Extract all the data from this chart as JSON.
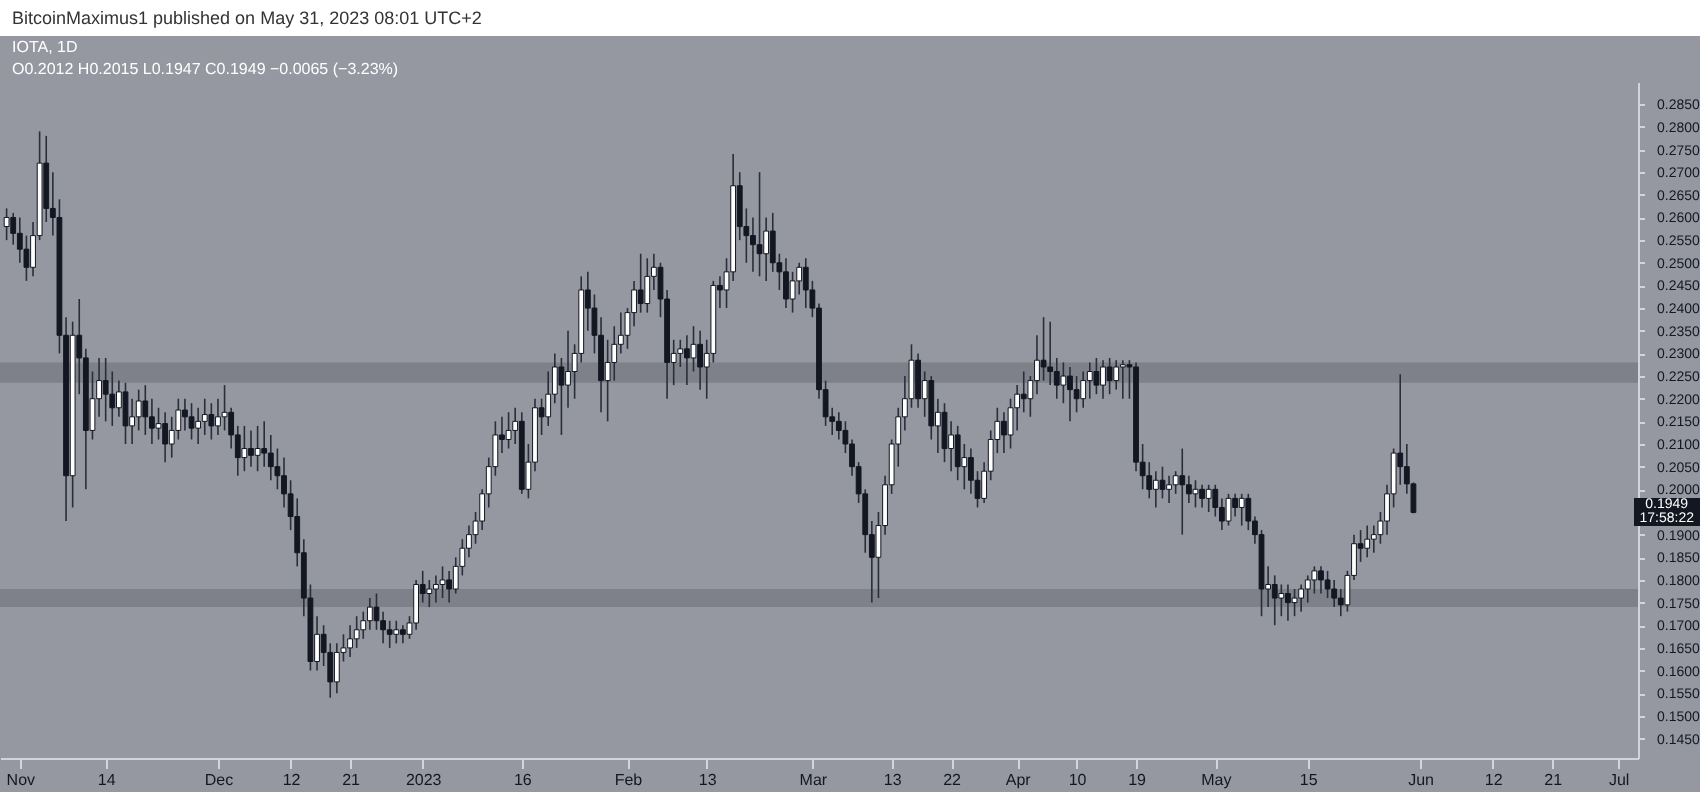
{
  "chart_data": {
    "type": "candlestick",
    "title": "IOTA, 1D",
    "subtitle": "O0.2012 H0.2015 L0.1947 C0.1949 −0.0065 (−3.23%)",
    "annotations": [
      "BitcoinMaximus1 published on May 31, 2023 08:01 UTC+2",
      "0.1949",
      "17:58:22"
    ],
    "x": [
      "2022-10-30",
      "2022-10-31",
      "2022-11-01",
      "2022-11-02",
      "2022-11-03",
      "2022-11-04",
      "2022-11-05",
      "2022-11-06",
      "2022-11-07",
      "2022-11-08",
      "2022-11-09",
      "2022-11-10",
      "2022-11-11",
      "2022-11-12",
      "2022-11-13",
      "2022-11-14",
      "2022-11-15",
      "2022-11-16",
      "2022-11-17",
      "2022-11-18",
      "2022-11-19",
      "2022-11-20",
      "2022-11-21",
      "2022-11-22",
      "2022-11-23",
      "2022-11-24",
      "2022-11-25",
      "2022-11-26",
      "2022-11-27",
      "2022-11-28",
      "2022-11-29",
      "2022-11-30",
      "2022-12-01",
      "2022-12-02",
      "2022-12-03",
      "2022-12-04",
      "2022-12-05",
      "2022-12-06",
      "2022-12-07",
      "2022-12-08",
      "2022-12-09",
      "2022-12-10",
      "2022-12-11",
      "2022-12-12",
      "2022-12-13",
      "2022-12-14",
      "2022-12-15",
      "2022-12-16",
      "2022-12-17",
      "2022-12-18",
      "2022-12-19",
      "2022-12-20",
      "2022-12-21",
      "2022-12-22",
      "2022-12-23",
      "2022-12-24",
      "2022-12-25",
      "2022-12-26",
      "2022-12-27",
      "2022-12-28",
      "2022-12-29",
      "2022-12-30",
      "2022-12-31",
      "2023-01-01",
      "2023-01-02",
      "2023-01-03",
      "2023-01-04",
      "2023-01-05",
      "2023-01-06",
      "2023-01-07",
      "2023-01-08",
      "2023-01-09",
      "2023-01-10",
      "2023-01-11",
      "2023-01-12",
      "2023-01-13",
      "2023-01-14",
      "2023-01-15",
      "2023-01-16",
      "2023-01-17",
      "2023-01-18",
      "2023-01-19",
      "2023-01-20",
      "2023-01-21",
      "2023-01-22",
      "2023-01-23",
      "2023-01-24",
      "2023-01-25",
      "2023-01-26",
      "2023-01-27",
      "2023-01-28",
      "2023-01-29",
      "2023-01-30",
      "2023-01-31",
      "2023-02-01",
      "2023-02-02",
      "2023-02-03",
      "2023-02-04",
      "2023-02-05",
      "2023-02-06",
      "2023-02-07",
      "2023-02-08",
      "2023-02-09",
      "2023-02-10",
      "2023-02-11",
      "2023-02-12",
      "2023-02-13",
      "2023-02-14",
      "2023-02-15",
      "2023-02-16",
      "2023-02-17",
      "2023-02-18",
      "2023-02-19",
      "2023-02-20",
      "2023-02-21",
      "2023-02-22",
      "2023-02-23",
      "2023-02-24",
      "2023-02-25",
      "2023-02-26",
      "2023-02-27",
      "2023-02-28",
      "2023-03-01",
      "2023-03-02",
      "2023-03-03",
      "2023-03-04",
      "2023-03-05",
      "2023-03-06",
      "2023-03-07",
      "2023-03-08",
      "2023-03-09",
      "2023-03-10",
      "2023-03-11",
      "2023-03-12",
      "2023-03-13",
      "2023-03-14",
      "2023-03-15",
      "2023-03-16",
      "2023-03-17",
      "2023-03-18",
      "2023-03-19",
      "2023-03-20",
      "2023-03-21",
      "2023-03-22",
      "2023-03-23",
      "2023-03-24",
      "2023-03-25",
      "2023-03-26",
      "2023-03-27",
      "2023-03-28",
      "2023-03-29",
      "2023-03-30",
      "2023-03-31",
      "2023-04-01",
      "2023-04-02",
      "2023-04-03",
      "2023-04-04",
      "2023-04-05",
      "2023-04-06",
      "2023-04-07",
      "2023-04-08",
      "2023-04-09",
      "2023-04-10",
      "2023-04-11",
      "2023-04-12",
      "2023-04-13",
      "2023-04-14",
      "2023-04-15",
      "2023-04-16",
      "2023-04-17",
      "2023-04-18",
      "2023-04-19",
      "2023-04-20",
      "2023-04-21",
      "2023-04-22",
      "2023-04-23",
      "2023-04-24",
      "2023-04-25",
      "2023-04-26",
      "2023-04-27",
      "2023-04-28",
      "2023-04-29",
      "2023-04-30",
      "2023-05-01",
      "2023-05-02",
      "2023-05-03",
      "2023-05-04",
      "2023-05-05",
      "2023-05-06",
      "2023-05-07",
      "2023-05-08",
      "2023-05-09",
      "2023-05-10",
      "2023-05-11",
      "2023-05-12",
      "2023-05-13",
      "2023-05-14",
      "2023-05-15",
      "2023-05-16",
      "2023-05-17",
      "2023-05-18",
      "2023-05-19",
      "2023-05-20",
      "2023-05-21",
      "2023-05-22",
      "2023-05-23",
      "2023-05-24",
      "2023-05-25",
      "2023-05-26",
      "2023-05-27",
      "2023-05-28",
      "2023-05-29",
      "2023-05-30",
      "2023-05-31"
    ],
    "ohlc": [
      [
        0.258,
        0.262,
        0.255,
        0.26
      ],
      [
        0.26,
        0.261,
        0.254,
        0.2565
      ],
      [
        0.2565,
        0.26,
        0.25,
        0.253
      ],
      [
        0.253,
        0.256,
        0.246,
        0.249
      ],
      [
        0.249,
        0.259,
        0.247,
        0.256
      ],
      [
        0.256,
        0.279,
        0.255,
        0.272
      ],
      [
        0.272,
        0.278,
        0.259,
        0.262
      ],
      [
        0.262,
        0.27,
        0.256,
        0.26
      ],
      [
        0.26,
        0.264,
        0.23,
        0.234
      ],
      [
        0.234,
        0.238,
        0.193,
        0.203
      ],
      [
        0.203,
        0.237,
        0.196,
        0.234
      ],
      [
        0.234,
        0.242,
        0.221,
        0.229
      ],
      [
        0.229,
        0.231,
        0.2,
        0.213
      ],
      [
        0.213,
        0.226,
        0.211,
        0.22
      ],
      [
        0.22,
        0.229,
        0.216,
        0.224
      ],
      [
        0.224,
        0.229,
        0.215,
        0.221
      ],
      [
        0.221,
        0.226,
        0.214,
        0.218
      ],
      [
        0.218,
        0.224,
        0.216,
        0.2215
      ],
      [
        0.2215,
        0.2235,
        0.21,
        0.214
      ],
      [
        0.214,
        0.22,
        0.21,
        0.216
      ],
      [
        0.216,
        0.222,
        0.213,
        0.2195
      ],
      [
        0.2195,
        0.223,
        0.212,
        0.216
      ],
      [
        0.216,
        0.22,
        0.21,
        0.2135
      ],
      [
        0.2135,
        0.218,
        0.211,
        0.2145
      ],
      [
        0.2145,
        0.217,
        0.206,
        0.21
      ],
      [
        0.21,
        0.216,
        0.207,
        0.213
      ],
      [
        0.213,
        0.22,
        0.211,
        0.2175
      ],
      [
        0.2175,
        0.22,
        0.213,
        0.216
      ],
      [
        0.216,
        0.219,
        0.211,
        0.2135
      ],
      [
        0.2135,
        0.218,
        0.21,
        0.215
      ],
      [
        0.215,
        0.22,
        0.212,
        0.2165
      ],
      [
        0.2165,
        0.219,
        0.211,
        0.214
      ],
      [
        0.214,
        0.22,
        0.212,
        0.216
      ],
      [
        0.216,
        0.223,
        0.213,
        0.217
      ],
      [
        0.217,
        0.218,
        0.209,
        0.212
      ],
      [
        0.212,
        0.214,
        0.203,
        0.207
      ],
      [
        0.207,
        0.214,
        0.204,
        0.209
      ],
      [
        0.209,
        0.213,
        0.205,
        0.2075
      ],
      [
        0.2075,
        0.214,
        0.204,
        0.209
      ],
      [
        0.209,
        0.215,
        0.205,
        0.208
      ],
      [
        0.208,
        0.212,
        0.202,
        0.205
      ],
      [
        0.205,
        0.209,
        0.2,
        0.203
      ],
      [
        0.203,
        0.207,
        0.196,
        0.199
      ],
      [
        0.199,
        0.202,
        0.191,
        0.194
      ],
      [
        0.194,
        0.198,
        0.183,
        0.186
      ],
      [
        0.186,
        0.189,
        0.172,
        0.176
      ],
      [
        0.176,
        0.179,
        0.16,
        0.162
      ],
      [
        0.162,
        0.172,
        0.16,
        0.168
      ],
      [
        0.168,
        0.17,
        0.161,
        0.164
      ],
      [
        0.164,
        0.166,
        0.154,
        0.1575
      ],
      [
        0.1575,
        0.166,
        0.155,
        0.164
      ],
      [
        0.164,
        0.168,
        0.162,
        0.165
      ],
      [
        0.165,
        0.17,
        0.163,
        0.167
      ],
      [
        0.167,
        0.172,
        0.165,
        0.169
      ],
      [
        0.169,
        0.173,
        0.167,
        0.171
      ],
      [
        0.171,
        0.176,
        0.169,
        0.174
      ],
      [
        0.174,
        0.177,
        0.169,
        0.171
      ],
      [
        0.171,
        0.173,
        0.166,
        0.169
      ],
      [
        0.169,
        0.171,
        0.165,
        0.168
      ],
      [
        0.168,
        0.171,
        0.166,
        0.169
      ],
      [
        0.169,
        0.17,
        0.166,
        0.168
      ],
      [
        0.168,
        0.172,
        0.167,
        0.1705
      ],
      [
        0.1705,
        0.18,
        0.169,
        0.179
      ],
      [
        0.179,
        0.182,
        0.175,
        0.177
      ],
      [
        0.177,
        0.18,
        0.174,
        0.178
      ],
      [
        0.178,
        0.181,
        0.175,
        0.179
      ],
      [
        0.179,
        0.183,
        0.176,
        0.18
      ],
      [
        0.18,
        0.182,
        0.175,
        0.178
      ],
      [
        0.178,
        0.185,
        0.177,
        0.183
      ],
      [
        0.183,
        0.189,
        0.181,
        0.187
      ],
      [
        0.187,
        0.192,
        0.185,
        0.19
      ],
      [
        0.19,
        0.195,
        0.188,
        0.193
      ],
      [
        0.193,
        0.2,
        0.191,
        0.199
      ],
      [
        0.199,
        0.207,
        0.196,
        0.205
      ],
      [
        0.205,
        0.215,
        0.203,
        0.212
      ],
      [
        0.212,
        0.216,
        0.208,
        0.211
      ],
      [
        0.211,
        0.217,
        0.209,
        0.213
      ],
      [
        0.213,
        0.218,
        0.21,
        0.215
      ],
      [
        0.215,
        0.217,
        0.199,
        0.2
      ],
      [
        0.2,
        0.21,
        0.198,
        0.206
      ],
      [
        0.206,
        0.22,
        0.204,
        0.218
      ],
      [
        0.218,
        0.22,
        0.212,
        0.216
      ],
      [
        0.216,
        0.226,
        0.214,
        0.221
      ],
      [
        0.221,
        0.23,
        0.219,
        0.227
      ],
      [
        0.227,
        0.229,
        0.212,
        0.223
      ],
      [
        0.223,
        0.235,
        0.218,
        0.226
      ],
      [
        0.226,
        0.232,
        0.22,
        0.23
      ],
      [
        0.23,
        0.247,
        0.228,
        0.244
      ],
      [
        0.244,
        0.248,
        0.235,
        0.24
      ],
      [
        0.24,
        0.243,
        0.23,
        0.234
      ],
      [
        0.234,
        0.238,
        0.217,
        0.224
      ],
      [
        0.224,
        0.233,
        0.215,
        0.228
      ],
      [
        0.228,
        0.236,
        0.224,
        0.232
      ],
      [
        0.232,
        0.239,
        0.23,
        0.234
      ],
      [
        0.234,
        0.24,
        0.231,
        0.239
      ],
      [
        0.239,
        0.246,
        0.236,
        0.244
      ],
      [
        0.244,
        0.252,
        0.239,
        0.241
      ],
      [
        0.241,
        0.251,
        0.239,
        0.247
      ],
      [
        0.247,
        0.252,
        0.244,
        0.249
      ],
      [
        0.249,
        0.25,
        0.238,
        0.242
      ],
      [
        0.242,
        0.244,
        0.22,
        0.228
      ],
      [
        0.228,
        0.233,
        0.223,
        0.23
      ],
      [
        0.23,
        0.233,
        0.227,
        0.231
      ],
      [
        0.231,
        0.234,
        0.223,
        0.229
      ],
      [
        0.229,
        0.236,
        0.226,
        0.232
      ],
      [
        0.232,
        0.235,
        0.222,
        0.227
      ],
      [
        0.227,
        0.233,
        0.22,
        0.23
      ],
      [
        0.23,
        0.246,
        0.228,
        0.245
      ],
      [
        0.245,
        0.247,
        0.24,
        0.244
      ],
      [
        0.244,
        0.251,
        0.24,
        0.248
      ],
      [
        0.248,
        0.274,
        0.246,
        0.267
      ],
      [
        0.267,
        0.27,
        0.255,
        0.258
      ],
      [
        0.258,
        0.262,
        0.25,
        0.256
      ],
      [
        0.256,
        0.26,
        0.248,
        0.254
      ],
      [
        0.254,
        0.27,
        0.247,
        0.252
      ],
      [
        0.252,
        0.26,
        0.246,
        0.257
      ],
      [
        0.257,
        0.261,
        0.248,
        0.25
      ],
      [
        0.25,
        0.252,
        0.244,
        0.248
      ],
      [
        0.248,
        0.251,
        0.24,
        0.242
      ],
      [
        0.242,
        0.248,
        0.239,
        0.246
      ],
      [
        0.246,
        0.25,
        0.243,
        0.249
      ],
      [
        0.249,
        0.251,
        0.24,
        0.244
      ],
      [
        0.244,
        0.246,
        0.238,
        0.24
      ],
      [
        0.24,
        0.241,
        0.22,
        0.222
      ],
      [
        0.222,
        0.224,
        0.214,
        0.216
      ],
      [
        0.216,
        0.218,
        0.212,
        0.215
      ],
      [
        0.215,
        0.217,
        0.211,
        0.213
      ],
      [
        0.213,
        0.215,
        0.208,
        0.21
      ],
      [
        0.21,
        0.211,
        0.203,
        0.205
      ],
      [
        0.205,
        0.206,
        0.197,
        0.199
      ],
      [
        0.199,
        0.2,
        0.186,
        0.19
      ],
      [
        0.19,
        0.193,
        0.175,
        0.185
      ],
      [
        0.185,
        0.195,
        0.176,
        0.192
      ],
      [
        0.192,
        0.203,
        0.19,
        0.201
      ],
      [
        0.201,
        0.211,
        0.199,
        0.21
      ],
      [
        0.21,
        0.218,
        0.205,
        0.216
      ],
      [
        0.216,
        0.225,
        0.213,
        0.22
      ],
      [
        0.22,
        0.232,
        0.218,
        0.2285
      ],
      [
        0.2285,
        0.23,
        0.218,
        0.22
      ],
      [
        0.22,
        0.226,
        0.216,
        0.224
      ],
      [
        0.224,
        0.225,
        0.211,
        0.214
      ],
      [
        0.214,
        0.22,
        0.208,
        0.217
      ],
      [
        0.217,
        0.219,
        0.206,
        0.209
      ],
      [
        0.209,
        0.215,
        0.204,
        0.212
      ],
      [
        0.212,
        0.214,
        0.202,
        0.205
      ],
      [
        0.205,
        0.21,
        0.2,
        0.207
      ],
      [
        0.207,
        0.209,
        0.199,
        0.202
      ],
      [
        0.202,
        0.204,
        0.196,
        0.198
      ],
      [
        0.198,
        0.206,
        0.197,
        0.204
      ],
      [
        0.204,
        0.213,
        0.202,
        0.211
      ],
      [
        0.211,
        0.218,
        0.208,
        0.215
      ],
      [
        0.215,
        0.217,
        0.208,
        0.212
      ],
      [
        0.212,
        0.22,
        0.209,
        0.218
      ],
      [
        0.218,
        0.223,
        0.213,
        0.221
      ],
      [
        0.221,
        0.226,
        0.217,
        0.22
      ],
      [
        0.22,
        0.225,
        0.216,
        0.224
      ],
      [
        0.224,
        0.234,
        0.221,
        0.2285
      ],
      [
        0.2285,
        0.238,
        0.224,
        0.227
      ],
      [
        0.227,
        0.237,
        0.223,
        0.226
      ],
      [
        0.226,
        0.229,
        0.22,
        0.223
      ],
      [
        0.223,
        0.228,
        0.219,
        0.225
      ],
      [
        0.225,
        0.227,
        0.215,
        0.222
      ],
      [
        0.222,
        0.225,
        0.217,
        0.22
      ],
      [
        0.22,
        0.226,
        0.218,
        0.224
      ],
      [
        0.224,
        0.228,
        0.22,
        0.226
      ],
      [
        0.226,
        0.229,
        0.221,
        0.223
      ],
      [
        0.223,
        0.2285,
        0.22,
        0.227
      ],
      [
        0.227,
        0.229,
        0.221,
        0.224
      ],
      [
        0.224,
        0.2285,
        0.222,
        0.227
      ],
      [
        0.227,
        0.2285,
        0.22,
        0.2275
      ],
      [
        0.2275,
        0.2285,
        0.22,
        0.227
      ],
      [
        0.227,
        0.228,
        0.204,
        0.206
      ],
      [
        0.206,
        0.21,
        0.2,
        0.203
      ],
      [
        0.203,
        0.206,
        0.198,
        0.2
      ],
      [
        0.2,
        0.204,
        0.196,
        0.202
      ],
      [
        0.202,
        0.205,
        0.198,
        0.2
      ],
      [
        0.2,
        0.203,
        0.197,
        0.201
      ],
      [
        0.201,
        0.204,
        0.199,
        0.203
      ],
      [
        0.203,
        0.209,
        0.19,
        0.201
      ],
      [
        0.201,
        0.203,
        0.197,
        0.199
      ],
      [
        0.199,
        0.202,
        0.196,
        0.2
      ],
      [
        0.2,
        0.201,
        0.196,
        0.198
      ],
      [
        0.198,
        0.201,
        0.195,
        0.2
      ],
      [
        0.2,
        0.201,
        0.194,
        0.196
      ],
      [
        0.196,
        0.198,
        0.191,
        0.193
      ],
      [
        0.193,
        0.199,
        0.192,
        0.198
      ],
      [
        0.198,
        0.199,
        0.194,
        0.196
      ],
      [
        0.196,
        0.199,
        0.192,
        0.198
      ],
      [
        0.198,
        0.199,
        0.191,
        0.193
      ],
      [
        0.193,
        0.194,
        0.188,
        0.19
      ],
      [
        0.19,
        0.191,
        0.172,
        0.178
      ],
      [
        0.178,
        0.183,
        0.174,
        0.179
      ],
      [
        0.179,
        0.181,
        0.17,
        0.176
      ],
      [
        0.176,
        0.179,
        0.172,
        0.177
      ],
      [
        0.177,
        0.179,
        0.171,
        0.175
      ],
      [
        0.175,
        0.178,
        0.172,
        0.176
      ],
      [
        0.176,
        0.179,
        0.173,
        0.178
      ],
      [
        0.178,
        0.181,
        0.175,
        0.18
      ],
      [
        0.18,
        0.183,
        0.177,
        0.182
      ],
      [
        0.182,
        0.183,
        0.177,
        0.18
      ],
      [
        0.18,
        0.182,
        0.176,
        0.178
      ],
      [
        0.178,
        0.18,
        0.174,
        0.176
      ],
      [
        0.176,
        0.178,
        0.172,
        0.1745
      ],
      [
        0.1745,
        0.182,
        0.173,
        0.181
      ],
      [
        0.181,
        0.19,
        0.18,
        0.188
      ],
      [
        0.188,
        0.191,
        0.184,
        0.187
      ],
      [
        0.187,
        0.192,
        0.185,
        0.189
      ],
      [
        0.189,
        0.192,
        0.186,
        0.19
      ],
      [
        0.19,
        0.195,
        0.188,
        0.193
      ],
      [
        0.193,
        0.201,
        0.19,
        0.199
      ],
      [
        0.199,
        0.209,
        0.196,
        0.208
      ],
      [
        0.208,
        0.2254,
        0.201,
        0.205
      ],
      [
        0.205,
        0.21,
        0.199,
        0.2012
      ],
      [
        0.2012,
        0.2015,
        0.1947,
        0.1949
      ]
    ],
    "xlim": [
      "2022-10-29",
      "2023-07-04"
    ],
    "xticks": [
      {
        "value": "2022-11-01",
        "label": "Nov"
      },
      {
        "value": "2022-11-14",
        "label": "14"
      },
      {
        "value": "2022-12-01",
        "label": "Dec"
      },
      {
        "value": "2022-12-12",
        "label": "12"
      },
      {
        "value": "2022-12-21",
        "label": "21"
      },
      {
        "value": "2023-01-01",
        "label": "2023"
      },
      {
        "value": "2023-01-16",
        "label": "16"
      },
      {
        "value": "2023-02-01",
        "label": "Feb"
      },
      {
        "value": "2023-02-13",
        "label": "13"
      },
      {
        "value": "2023-03-01",
        "label": "Mar"
      },
      {
        "value": "2023-03-13",
        "label": "13"
      },
      {
        "value": "2023-03-22",
        "label": "22"
      },
      {
        "value": "2023-04-01",
        "label": "Apr"
      },
      {
        "value": "2023-04-10",
        "label": "10"
      },
      {
        "value": "2023-04-19",
        "label": "19"
      },
      {
        "value": "2023-05-01",
        "label": "May"
      },
      {
        "value": "2023-05-15",
        "label": "15"
      },
      {
        "value": "2023-06-01",
        "label": "Jun"
      },
      {
        "value": "2023-06-12",
        "label": "12"
      },
      {
        "value": "2023-06-21",
        "label": "21"
      },
      {
        "value": "2023-07-01",
        "label": "Jul"
      }
    ],
    "ylim": [
      0.1407,
      0.2899
    ],
    "yticks": [
      {
        "value": 0.145,
        "label": "0.1450"
      },
      {
        "value": 0.15,
        "label": "0.1500"
      },
      {
        "value": 0.155,
        "label": "0.1550"
      },
      {
        "value": 0.16,
        "label": "0.1600"
      },
      {
        "value": 0.165,
        "label": "0.1650"
      },
      {
        "value": 0.17,
        "label": "0.1700"
      },
      {
        "value": 0.175,
        "label": "0.1750"
      },
      {
        "value": 0.18,
        "label": "0.1800"
      },
      {
        "value": 0.185,
        "label": "0.1850"
      },
      {
        "value": 0.19,
        "label": "0.1900"
      },
      {
        "value": 0.195,
        "label": null
      },
      {
        "value": 0.2,
        "label": "0.2000"
      },
      {
        "value": 0.205,
        "label": "0.2050"
      },
      {
        "value": 0.21,
        "label": "0.2100"
      },
      {
        "value": 0.215,
        "label": "0.2150"
      },
      {
        "value": 0.22,
        "label": "0.2200"
      },
      {
        "value": 0.225,
        "label": "0.2250"
      },
      {
        "value": 0.23,
        "label": "0.2300"
      },
      {
        "value": 0.235,
        "label": "0.2350"
      },
      {
        "value": 0.24,
        "label": "0.2400"
      },
      {
        "value": 0.245,
        "label": "0.2450"
      },
      {
        "value": 0.25,
        "label": "0.2500"
      },
      {
        "value": 0.255,
        "label": "0.2550"
      },
      {
        "value": 0.26,
        "label": "0.2600"
      },
      {
        "value": 0.265,
        "label": "0.2650"
      },
      {
        "value": 0.27,
        "label": "0.2700"
      },
      {
        "value": 0.275,
        "label": "0.2750"
      },
      {
        "value": 0.28,
        "label": "0.2800"
      },
      {
        "value": 0.285,
        "label": "0.2850"
      }
    ],
    "bands": [
      {
        "axis": "y",
        "from": 0.2235,
        "to": 0.228,
        "color": "#7b7e87"
      },
      {
        "axis": "y",
        "from": 0.174,
        "to": 0.178,
        "color": "#7b7e87"
      }
    ]
  }
}
